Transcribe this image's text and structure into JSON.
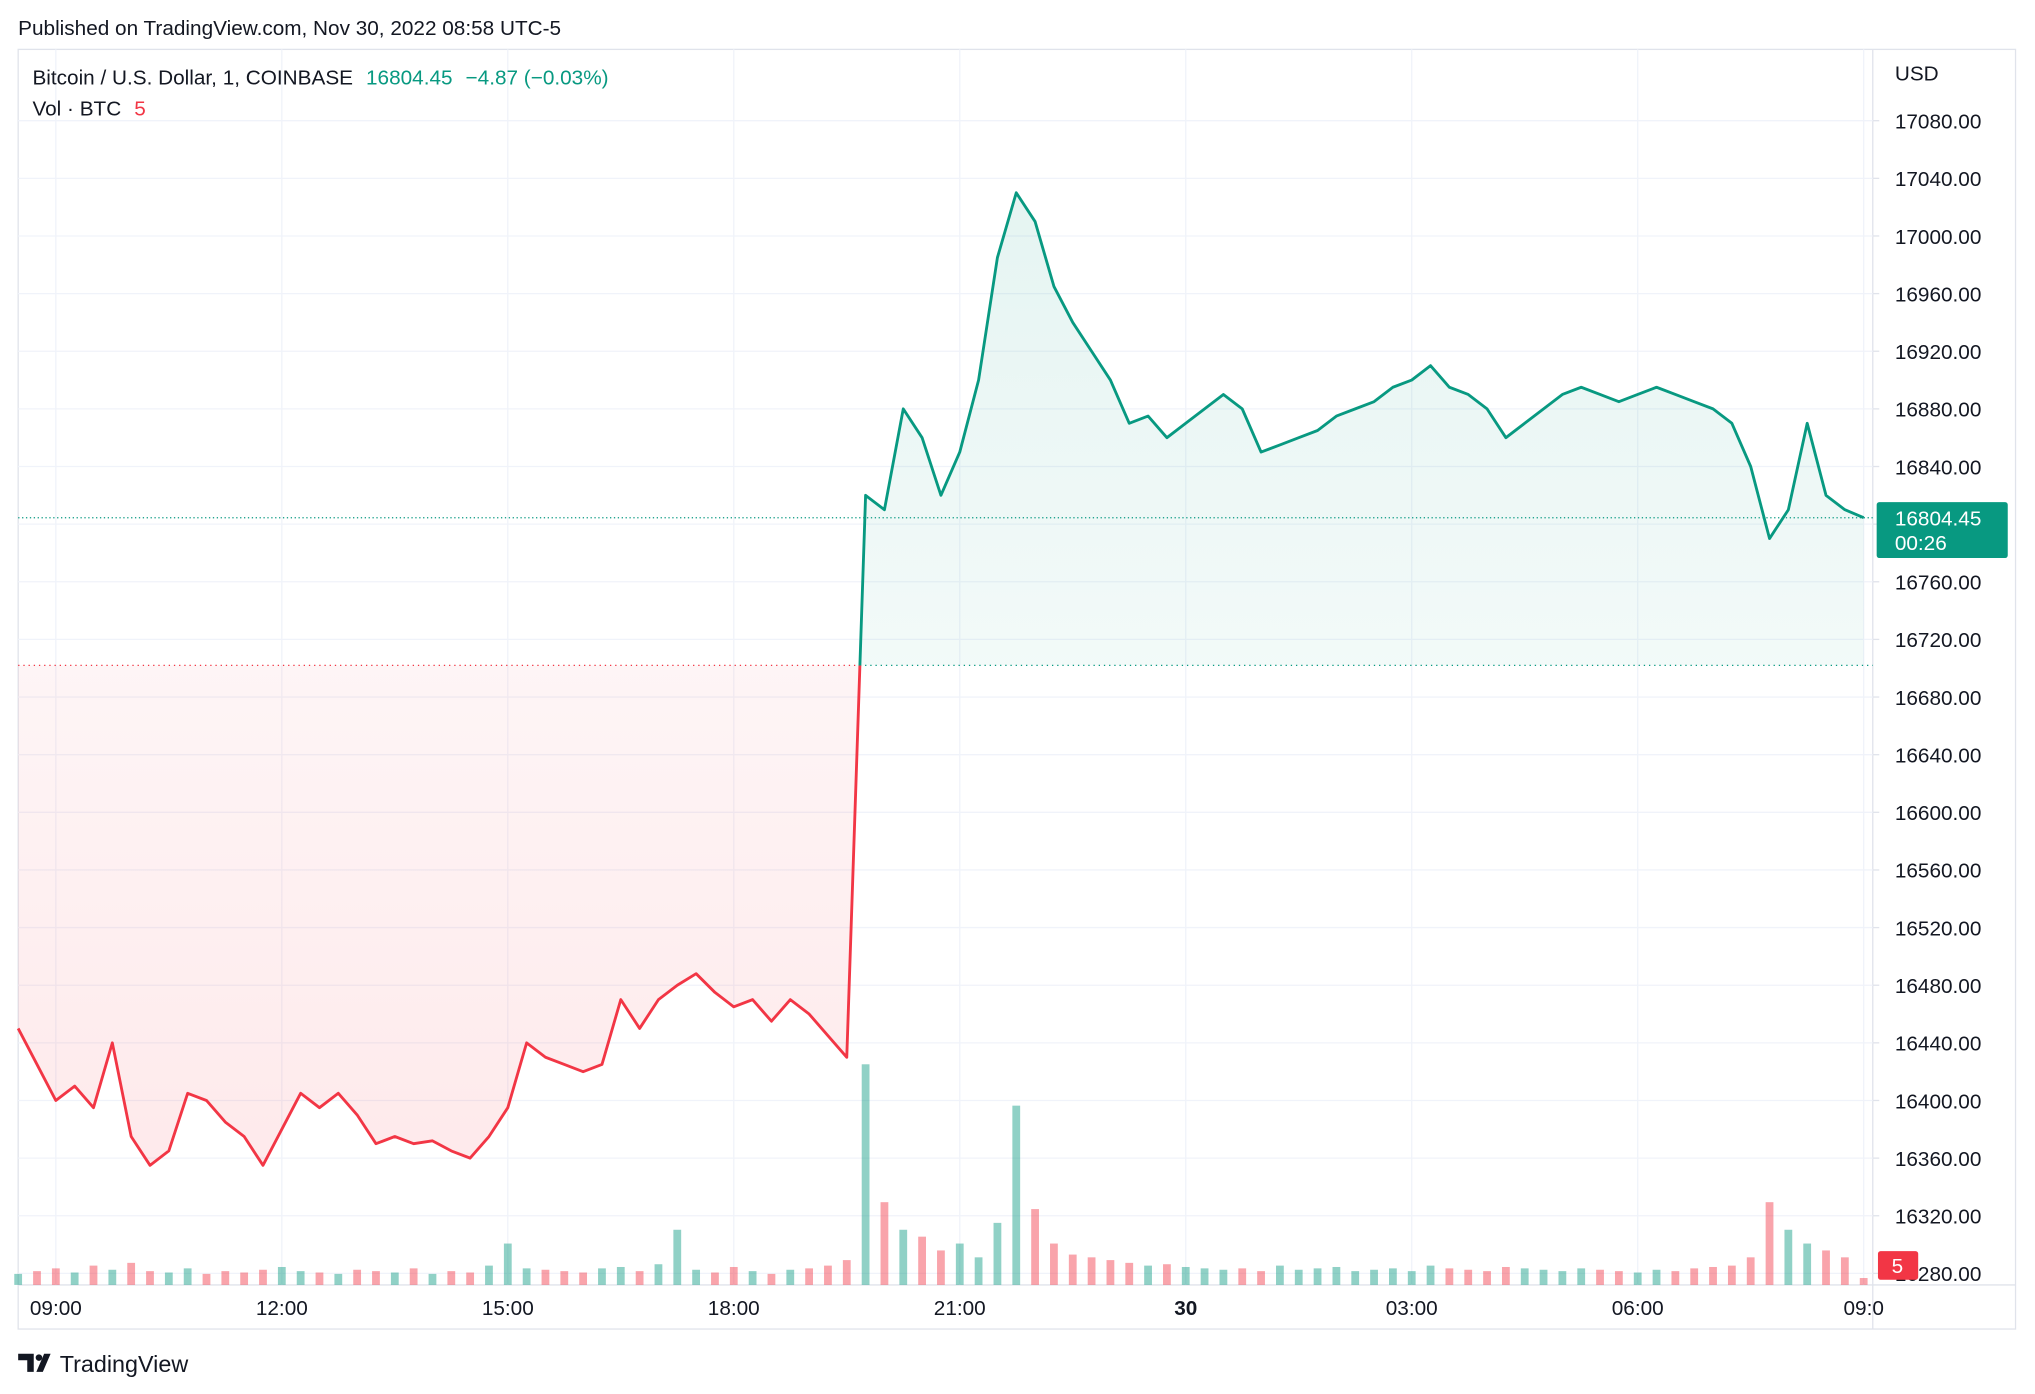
{
  "page": {
    "published": "Published on TradingView.com, Nov 30, 2022 08:58 UTC-5",
    "brand": "TradingView"
  },
  "chart_data": {
    "type": "baseline",
    "title": "Bitcoin / U.S. Dollar, 1, COINBASE",
    "last_price": 16804.45,
    "change": "−4.87 (−0.03%)",
    "countdown": "00:26",
    "currency": "USD",
    "baseline": 16702,
    "up_color": "#089981",
    "down_color": "#f23645",
    "grid": true,
    "categories": [
      null,
      null,
      "09:00",
      null,
      null,
      null,
      null,
      null,
      null,
      null,
      null,
      null,
      null,
      null,
      "12:00",
      null,
      null,
      null,
      null,
      null,
      null,
      null,
      null,
      null,
      null,
      null,
      "15:00",
      null,
      null,
      null,
      null,
      null,
      null,
      null,
      null,
      null,
      null,
      null,
      "18:00",
      null,
      null,
      null,
      null,
      null,
      null,
      null,
      null,
      null,
      null,
      null,
      "21:00",
      null,
      null,
      null,
      null,
      null,
      null,
      null,
      null,
      null,
      null,
      null,
      "30",
      null,
      null,
      null,
      null,
      null,
      null,
      null,
      null,
      null,
      null,
      null,
      "03:00",
      null,
      null,
      null,
      null,
      null,
      null,
      null,
      null,
      null,
      null,
      null,
      "06:00",
      null,
      null,
      null,
      null,
      null,
      null,
      null,
      null,
      null,
      null,
      null,
      "09:0"
    ],
    "values": [
      16450,
      16425,
      16400,
      16410,
      16395,
      16440,
      16375,
      16355,
      16365,
      16405,
      16400,
      16385,
      16375,
      16355,
      16380,
      16405,
      16395,
      16405,
      16390,
      16370,
      16375,
      16370,
      16372,
      16365,
      16360,
      16375,
      16395,
      16440,
      16430,
      16425,
      16420,
      16425,
      16470,
      16450,
      16470,
      16480,
      16488,
      16475,
      16465,
      16470,
      16455,
      16470,
      16460,
      16445,
      16430,
      16820,
      16810,
      16880,
      16860,
      16820,
      16850,
      16900,
      16985,
      17030,
      17010,
      16965,
      16940,
      16920,
      16900,
      16870,
      16875,
      16860,
      16870,
      16880,
      16890,
      16880,
      16850,
      16855,
      16860,
      16865,
      16875,
      16880,
      16885,
      16895,
      16900,
      16910,
      16895,
      16890,
      16880,
      16860,
      16870,
      16880,
      16890,
      16895,
      16890,
      16885,
      16890,
      16895,
      16890,
      16885,
      16880,
      16870,
      16840,
      16790,
      16810,
      16870,
      16820,
      16810,
      16804.45
    ],
    "volume": {
      "name": "Vol · BTC",
      "up_color": "rgba(8,153,129,0.45)",
      "down_color": "rgba(242,54,69,0.45)",
      "values": [
        8,
        10,
        12,
        9,
        14,
        11,
        16,
        10,
        9,
        12,
        8,
        10,
        9,
        11,
        13,
        10,
        9,
        8,
        11,
        10,
        9,
        12,
        8,
        10,
        9,
        14,
        30,
        12,
        11,
        10,
        9,
        12,
        13,
        10,
        15,
        40,
        11,
        9,
        13,
        10,
        8,
        11,
        12,
        14,
        18,
        160,
        60,
        40,
        35,
        25,
        30,
        20,
        45,
        130,
        55,
        30,
        22,
        20,
        18,
        16,
        14,
        15,
        13,
        12,
        11,
        12,
        10,
        14,
        11,
        12,
        13,
        10,
        11,
        12,
        10,
        14,
        12,
        11,
        10,
        13,
        12,
        11,
        10,
        12,
        11,
        10,
        9,
        11,
        10,
        12,
        13,
        14,
        20,
        60,
        40,
        30,
        25,
        20,
        5
      ]
    },
    "ylim": [
      16272,
      17129.5
    ],
    "yticks": [
      {
        "value": 16280,
        "label": "16280.00"
      },
      {
        "value": 16320,
        "label": "16320.00"
      },
      {
        "value": 16360,
        "label": "16360.00"
      },
      {
        "value": 16400,
        "label": "16400.00"
      },
      {
        "value": 16440,
        "label": "16440.00"
      },
      {
        "value": 16480,
        "label": "16480.00"
      },
      {
        "value": 16520,
        "label": "16520.00"
      },
      {
        "value": 16560,
        "label": "16560.00"
      },
      {
        "value": 16600,
        "label": "16600.00"
      },
      {
        "value": 16640,
        "label": "16640.00"
      },
      {
        "value": 16680,
        "label": "16680.00"
      },
      {
        "value": 16720,
        "label": "16720.00"
      },
      {
        "value": 16760,
        "label": "16760.00"
      },
      {
        "value": 16800,
        "label": "16800.00"
      },
      {
        "value": 16840,
        "label": "16840.00"
      },
      {
        "value": 16880,
        "label": "16880.00"
      },
      {
        "value": 16920,
        "label": "16920.00"
      },
      {
        "value": 16960,
        "label": "16960.00"
      },
      {
        "value": 17000,
        "label": "17000.00"
      },
      {
        "value": 17040,
        "label": "17040.00"
      },
      {
        "value": 17080,
        "label": "17080.00"
      }
    ]
  }
}
